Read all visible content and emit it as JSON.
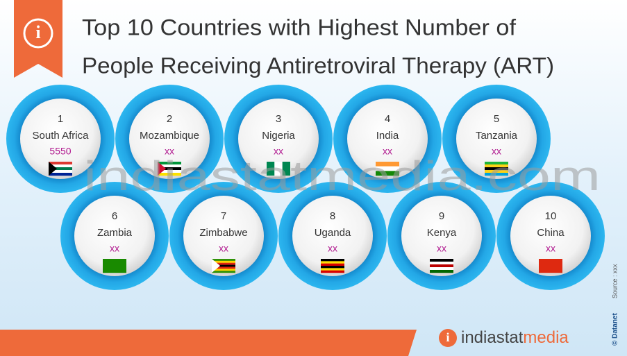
{
  "header": {
    "title_lines": [
      "Top 10 Countries with Highest Number of",
      "People Receiving Antiretroviral Therapy (ART)"
    ]
  },
  "countries": [
    {
      "rank": "1",
      "name": "South Africa",
      "value": "5550"
    },
    {
      "rank": "2",
      "name": "Mozambique",
      "value": "xx"
    },
    {
      "rank": "3",
      "name": "Nigeria",
      "value": "xx"
    },
    {
      "rank": "4",
      "name": "India",
      "value": "xx"
    },
    {
      "rank": "5",
      "name": "Tanzania",
      "value": "xx"
    },
    {
      "rank": "6",
      "name": "Zambia",
      "value": "xx"
    },
    {
      "rank": "7",
      "name": "Zimbabwe",
      "value": "xx"
    },
    {
      "rank": "8",
      "name": "Uganda",
      "value": "xx"
    },
    {
      "rank": "9",
      "name": "Kenya",
      "value": "xx"
    },
    {
      "rank": "10",
      "name": "China",
      "value": "xx"
    }
  ],
  "watermark": "indiastatmedia.com",
  "footer": {
    "brand_part1": "indiastat",
    "brand_part2": "media",
    "copyright": "© Datanet",
    "source": "Source : xxx"
  }
}
